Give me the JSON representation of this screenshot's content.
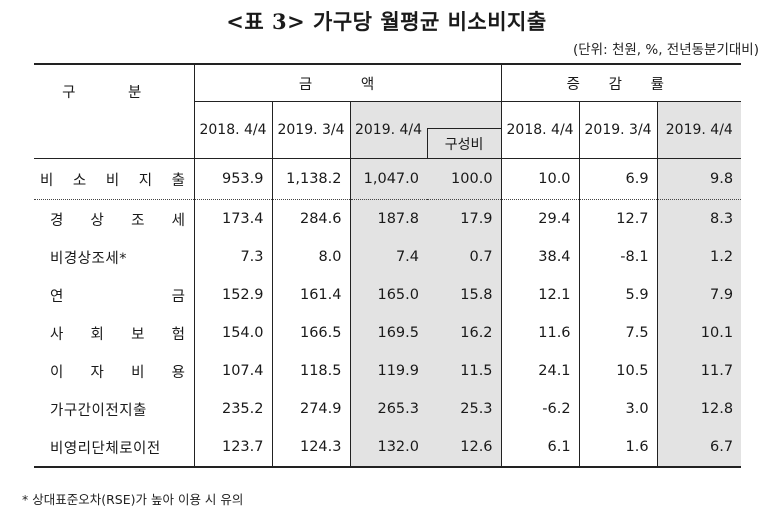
{
  "title": "<표 3> 가구당 월평균 비소비지출",
  "unit_note": "(단위: 천원, %, 전년동분기대비)",
  "header": {
    "category": "구 분",
    "amount_group": "금 액",
    "change_group": "증 감 률",
    "composition": "구성비",
    "years_amount": [
      "2018. 4/4",
      "2019. 3/4",
      "2019. 4/4"
    ],
    "years_change": [
      "2018. 4/4",
      "2019. 3/4",
      "2019. 4/4"
    ]
  },
  "rows": [
    {
      "label": "비 소 비 지 출",
      "values": [
        "953.9",
        "1,138.2",
        "1,047.0",
        "100.0",
        "10.0",
        "6.9",
        "9.8"
      ]
    },
    {
      "label": "경 상 조 세",
      "values": [
        "173.4",
        "284.6",
        "187.8",
        "17.9",
        "29.4",
        "12.7",
        "8.3"
      ]
    },
    {
      "label": "비경상조세*",
      "values": [
        "7.3",
        "8.0",
        "7.4",
        "0.7",
        "38.4",
        "-8.1",
        "1.2"
      ]
    },
    {
      "label": "연 금",
      "values": [
        "152.9",
        "161.4",
        "165.0",
        "15.8",
        "12.1",
        "5.9",
        "7.9"
      ]
    },
    {
      "label": "사 회 보 험",
      "values": [
        "154.0",
        "166.5",
        "169.5",
        "16.2",
        "11.6",
        "7.5",
        "10.1"
      ]
    },
    {
      "label": "이 자 비 용",
      "values": [
        "107.4",
        "118.5",
        "119.9",
        "11.5",
        "24.1",
        "10.5",
        "11.7"
      ]
    },
    {
      "label": "가구간이전지출",
      "values": [
        "235.2",
        "274.9",
        "265.3",
        "25.3",
        "-6.2",
        "3.0",
        "12.8"
      ]
    },
    {
      "label": "비영리단체로이전",
      "values": [
        "123.7",
        "124.3",
        "132.0",
        "12.6",
        "6.1",
        "1.6",
        "6.7"
      ]
    }
  ],
  "footnote": "* 상대표준오차(RSE)가 높아 이용 시 유의"
}
